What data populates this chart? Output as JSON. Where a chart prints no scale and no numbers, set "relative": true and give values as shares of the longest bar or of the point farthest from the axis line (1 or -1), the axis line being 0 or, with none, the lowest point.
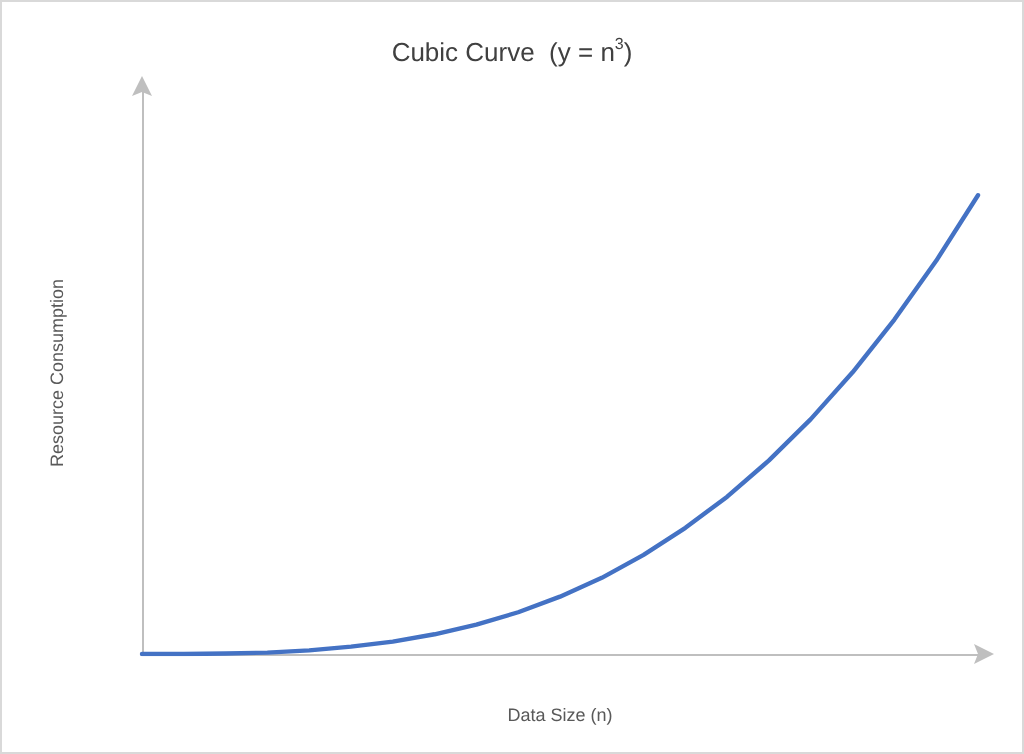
{
  "chart_data": {
    "type": "line",
    "title": "Cubic Curve  (y = n$^{3}$)",
    "xlabel": "Data Size (n)",
    "ylabel": "Resource Consumption",
    "relative": true,
    "categories": [
      null,
      null,
      null,
      null,
      null,
      null,
      null,
      null,
      null,
      null,
      null,
      null,
      null,
      null,
      null,
      null,
      null,
      null,
      null,
      null,
      null
    ],
    "series": [
      {
        "color": "#4472c4",
        "values": [
          0,
          0.0001,
          0.001,
          0.003,
          0.008,
          0.016,
          0.027,
          0.043,
          0.064,
          0.091,
          0.125,
          0.166,
          0.216,
          0.275,
          0.343,
          0.422,
          0.512,
          0.614,
          0.729,
          0.857,
          1
        ]
      }
    ],
    "grid": false,
    "marker": "none",
    "line_style": "solid"
  }
}
